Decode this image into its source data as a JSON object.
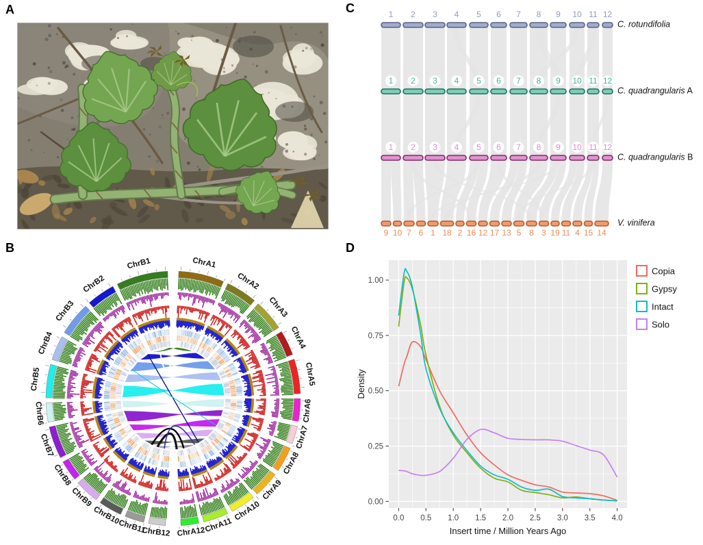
{
  "figure": {
    "panel_a_label": "A",
    "panel_b_label": "B",
    "panel_c_label": "C",
    "panel_d_label": "D"
  },
  "panel_a": {
    "type": "photograph",
    "subject": "succulent vine shoot with lobed green leaves climbing over lichen-covered rock",
    "palette": {
      "background": "#847e71",
      "rock": "#95907f",
      "rock_dark": "#6e6a5f",
      "lichen": "#eae6d7",
      "rock_shadow": "#4e4a41",
      "leaf": "#5c8f3e",
      "leaf_light": "#74a551",
      "vein": "#a9cb8a",
      "young_shoot": "#6c5d28",
      "stem": "#93b274",
      "stem_dark": "#5f7a46",
      "twig": "#6b5a44",
      "twig_light": "#9a9388",
      "litter": "#615949",
      "dead_leaf": "#c9a96e",
      "dead_leaf2": "#a8854e",
      "pale_leaf": "#ddd3ac"
    }
  },
  "panel_b": {
    "type": "circos",
    "chromosomes_a": [
      {
        "name": "ChrA1",
        "color": "#8f6c14",
        "size": 38
      },
      {
        "name": "ChrA2",
        "color": "#7e7b1e",
        "size": 26
      },
      {
        "name": "ChrA3",
        "color": "#a3a332",
        "size": 26
      },
      {
        "name": "ChrA4",
        "color": "#b01c20",
        "size": 21
      },
      {
        "name": "ChrA5",
        "color": "#ee2424",
        "size": 29
      },
      {
        "name": "ChrA6",
        "color": "#ee22cc",
        "size": 19
      },
      {
        "name": "ChrA7",
        "color": "#f7cdda",
        "size": 15
      },
      {
        "name": "ChrA8",
        "color": "#f59d1f",
        "size": 21
      },
      {
        "name": "ChrA9",
        "color": "#eeb320",
        "size": 22
      },
      {
        "name": "ChrA10",
        "color": "#f2ee2a",
        "size": 21
      },
      {
        "name": "ChrA11",
        "color": "#a8ee2a",
        "size": 21
      },
      {
        "name": "ChrA12",
        "color": "#2cee2c",
        "size": 15
      }
    ],
    "chromosomes_b": [
      {
        "name": "ChrB1",
        "color": "#357d1e",
        "size": 40
      },
      {
        "name": "ChrB2",
        "color": "#1717ce",
        "size": 22
      },
      {
        "name": "ChrB3",
        "color": "#6f9cea",
        "size": 26
      },
      {
        "name": "ChrB4",
        "color": "#aabef2",
        "size": 19
      },
      {
        "name": "ChrB5",
        "color": "#22eded",
        "size": 26
      },
      {
        "name": "ChrB6",
        "color": "#cdf2f2",
        "size": 15
      },
      {
        "name": "ChrB7",
        "color": "#8d1fce",
        "size": 25
      },
      {
        "name": "ChrB8",
        "color": "#c522ee",
        "size": 16
      },
      {
        "name": "ChrB9",
        "color": "#d9aaf2",
        "size": 19
      },
      {
        "name": "ChrB10",
        "color": "#5a5a5a",
        "size": 18
      },
      {
        "name": "ChrB11",
        "color": "#9a9a9a",
        "size": 15
      },
      {
        "name": "ChrB12",
        "color": "#cdcdcd",
        "size": 13
      }
    ],
    "tracks": [
      {
        "name": "histogram-green",
        "color": "#2a7a12"
      },
      {
        "name": "histogram-purple",
        "color": "#9b1f9b"
      },
      {
        "name": "histogram-red",
        "color": "#cf1f1f"
      },
      {
        "name": "ring-gold",
        "color": "#b8860b"
      },
      {
        "name": "histogram-blue",
        "color": "#1c1ccc"
      },
      {
        "name": "heatmap-blue",
        "color": "#8fb4dd"
      },
      {
        "name": "heatmap-orange",
        "color": "#eaa668"
      },
      {
        "name": "heatmap-gray",
        "color": "#b9c4d6"
      }
    ]
  },
  "panel_c": {
    "type": "synteny",
    "ribbon_color": "#e4e4e4",
    "rows": [
      {
        "species": "C. rotundifolia",
        "suffix": "",
        "numbers": [
          "1",
          "2",
          "3",
          "4",
          "5",
          "6",
          "7",
          "8",
          "9",
          "10",
          "11",
          "12"
        ],
        "numbers_position": "above",
        "number_bg": false,
        "fill": "#a2abc9",
        "stroke": "#59628a",
        "number_color": "#8f9cc4"
      },
      {
        "species": "C. quadrangularis",
        "suffix": "A",
        "numbers": [
          "1",
          "2",
          "3",
          "4",
          "5",
          "6",
          "7",
          "8",
          "9",
          "10",
          "11",
          "12"
        ],
        "numbers_position": "above",
        "number_bg": true,
        "fill": "#7ccdb4",
        "stroke": "#1e6f5c",
        "number_color": "#46b695"
      },
      {
        "species": "C. quadrangularis",
        "suffix": "B",
        "numbers": [
          "1",
          "2",
          "3",
          "4",
          "5",
          "6",
          "7",
          "8",
          "9",
          "10",
          "11",
          "12"
        ],
        "numbers_position": "above",
        "number_bg": true,
        "fill": "#e292d3",
        "stroke": "#7d2d62",
        "number_color": "#e08ad2"
      },
      {
        "species": "V. vinifera",
        "suffix": "",
        "numbers": [
          "9",
          "10",
          "7",
          "6",
          "1",
          "18",
          "2",
          "16",
          "12",
          "17",
          "13",
          "5",
          "8",
          "3",
          "19",
          "11",
          "4",
          "15",
          "14"
        ],
        "numbers_position": "below",
        "number_bg": false,
        "fill": "#f09a70",
        "stroke": "#b65a2a",
        "number_color": "#ed8a57"
      }
    ],
    "extra_links_r1_r2": [
      [
        8,
        9,
        0.45
      ],
      [
        10,
        8,
        0.35
      ],
      [
        11,
        10,
        0.45
      ],
      [
        4,
        5,
        0.3
      ]
    ],
    "extra_links_r2_r3": [
      [
        5,
        4,
        0.3
      ],
      [
        9,
        8,
        0.35
      ],
      [
        12,
        11,
        0.3
      ]
    ],
    "links_r3_r4": [
      [
        1,
        [
          1,
          2
        ]
      ],
      [
        2,
        [
          3,
          4
        ]
      ],
      [
        3,
        [
          5
        ]
      ],
      [
        4,
        [
          6
        ]
      ],
      [
        5,
        [
          7,
          8
        ]
      ],
      [
        6,
        [
          9
        ]
      ],
      [
        7,
        [
          10,
          11
        ]
      ],
      [
        8,
        [
          12
        ]
      ],
      [
        9,
        [
          13,
          14
        ]
      ],
      [
        10,
        [
          15,
          16
        ]
      ],
      [
        11,
        [
          17,
          18
        ]
      ],
      [
        12,
        [
          19
        ]
      ]
    ],
    "extra_links_r3_r4": [
      [
        3,
        13,
        0.3
      ],
      [
        5,
        3,
        0.25
      ],
      [
        8,
        6,
        0.3
      ],
      [
        2,
        8,
        0.25
      ],
      [
        9,
        5,
        0.25
      ],
      [
        11,
        12,
        0.3
      ],
      [
        6,
        14,
        0.25
      ]
    ]
  },
  "panel_d": {
    "chart_data": {
      "type": "line",
      "title": "",
      "xlabel": "Insert time / Million Years Ago",
      "ylabel": "Density",
      "xlim": [
        -0.18,
        4.18
      ],
      "ylim": [
        -0.03,
        1.09
      ],
      "x_ticks": [
        "0.0",
        "0.5",
        "1.0",
        "1.5",
        "2.0",
        "2.5",
        "3.0",
        "3.5",
        "4.0"
      ],
      "x_tick_values": [
        0,
        0.5,
        1,
        1.5,
        2,
        2.5,
        3,
        3.5,
        4
      ],
      "y_ticks": [
        "0.00",
        "0.25",
        "0.50",
        "0.75",
        "1.00"
      ],
      "y_tick_values": [
        0,
        0.25,
        0.5,
        0.75,
        1
      ],
      "grid": true,
      "panel_background": "#ebebeb",
      "legend_position": "right",
      "x": [
        0,
        0.1,
        0.15,
        0.25,
        0.4,
        0.5,
        0.75,
        1.0,
        1.25,
        1.5,
        1.75,
        2.0,
        2.25,
        2.5,
        2.75,
        3.0,
        3.25,
        3.5,
        3.75,
        4.0
      ],
      "series": [
        {
          "name": "Copia",
          "color": "#ee6a5e",
          "values": [
            0.52,
            0.62,
            0.655,
            0.72,
            0.7,
            0.64,
            0.5,
            0.4,
            0.3,
            0.22,
            0.165,
            0.12,
            0.095,
            0.075,
            0.065,
            0.042,
            0.038,
            0.035,
            0.025,
            0.005
          ]
        },
        {
          "name": "Gypsy",
          "color": "#7fae12",
          "values": [
            0.79,
            0.99,
            1.01,
            0.96,
            0.8,
            0.66,
            0.43,
            0.3,
            0.22,
            0.15,
            0.105,
            0.088,
            0.05,
            0.04,
            0.03,
            0.016,
            0.02,
            0.012,
            0.006,
            0.002
          ]
        },
        {
          "name": "Intact",
          "color": "#0fbcc2",
          "values": [
            0.84,
            1.03,
            1.04,
            0.97,
            0.76,
            0.6,
            0.42,
            0.31,
            0.23,
            0.16,
            0.12,
            0.1,
            0.065,
            0.05,
            0.055,
            0.022,
            0.016,
            0.012,
            0.006,
            0.003
          ]
        },
        {
          "name": "Solo",
          "color": "#c77ef0",
          "values": [
            0.14,
            0.138,
            0.135,
            0.125,
            0.118,
            0.118,
            0.135,
            0.195,
            0.28,
            0.325,
            0.31,
            0.285,
            0.28,
            0.278,
            0.278,
            0.272,
            0.252,
            0.232,
            0.21,
            0.11
          ]
        }
      ]
    }
  }
}
